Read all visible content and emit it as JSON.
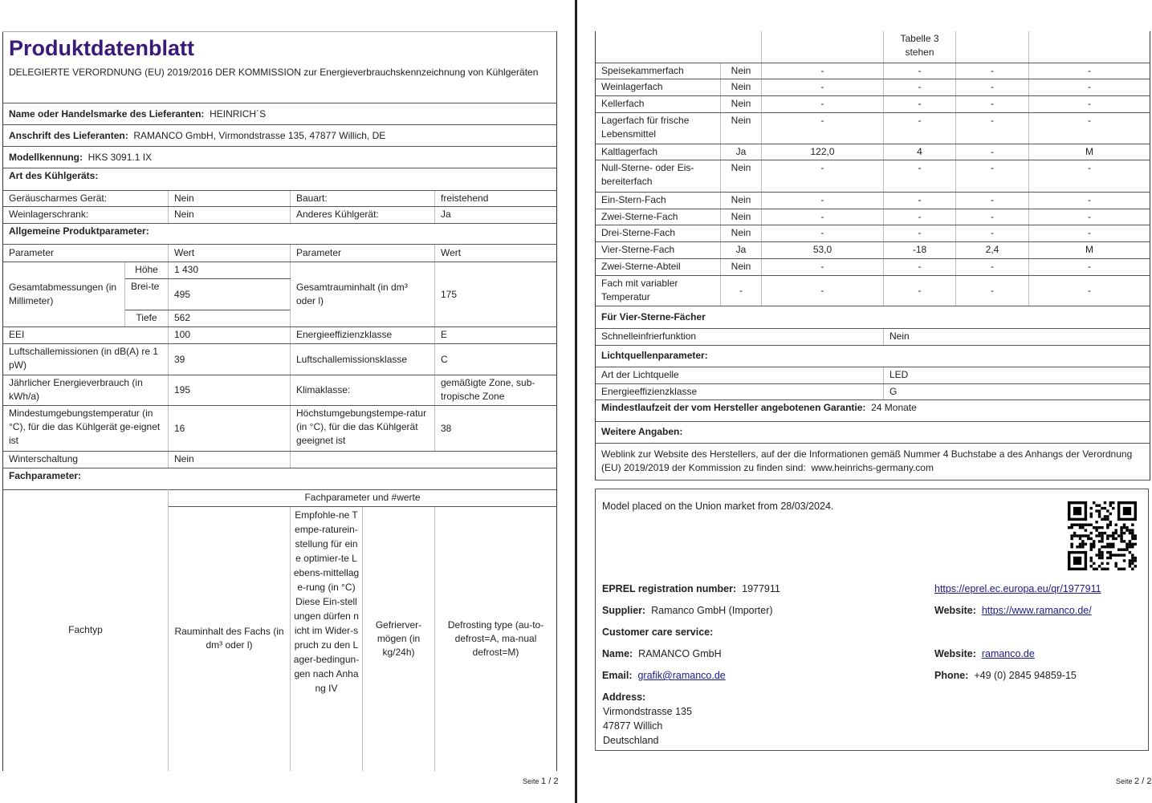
{
  "page1": {
    "title": "Produktdatenblatt",
    "regulation": "DELEGIERTE VERORDNUNG (EU) 2019/2016 DER KOMMISSION zur Energieverbrauchskennzeichnung von Kühlgeräten",
    "supplier_name_label": "Name oder Handelsmarke des Lieferanten:",
    "supplier_name": "HEINRICH´S",
    "supplier_address_label": "Anschrift des Lieferanten:",
    "supplier_address": "RAMANCO GmbH, Virmondstrasse 135, 47877 Willich, DE",
    "model_label": "Modellkennung:",
    "model": "HKS 3091.1 IX",
    "type_heading": "Art des Kühlgeräts:",
    "type_rows": [
      {
        "l1": "Geräuscharmes Gerät:",
        "v1": "Nein",
        "l2": "Bauart:",
        "v2": "freistehend"
      },
      {
        "l1": "Weinlagerschrank:",
        "v1": "Nein",
        "l2": "Anderes Kühlgerät:",
        "v2": "Ja"
      }
    ],
    "general_heading": "Allgemeine Produktparameter:",
    "col_parameter": "Parameter",
    "col_value": "Wert",
    "dimensions_label": "Gesamtabmessungen (in Millimeter)",
    "height_label": "Höhe",
    "height": "1 430",
    "width_label": "Brei-te",
    "width": "495",
    "depth_label": "Tiefe",
    "depth": "562",
    "volume_label": "Gesamtrauminhalt (in dm³ oder l)",
    "volume": "175",
    "rows": [
      {
        "l1": "EEI",
        "v1": "100",
        "l2": "Energieeffizienzklasse",
        "v2": "E"
      },
      {
        "l1": "Luftschallemissionen (in dB(A) re 1 pW)",
        "v1": "39",
        "l2": "Luftschallemissionsklasse",
        "v2": "C"
      },
      {
        "l1": "Jährlicher Energieverbrauch (in kWh/a)",
        "v1": "195",
        "l2": "Klimaklasse:",
        "v2": "gemäßigte Zone, sub-tropische Zone"
      },
      {
        "l1": "Mindestumgebungstemperatur (in °C), für die das Kühlgerät ge-eignet ist",
        "v1": "16",
        "l2": "Höchstumgebungstempe-ratur (in °C), für die das Kühlgerät geeignet ist",
        "v2": "38"
      }
    ],
    "winter_label": "Winterschaltung",
    "winter": "Nein",
    "compartment_heading": "Fachparameter:",
    "compartment_group": "Fachparameter und #werte",
    "col_fachtyp": "Fachtyp",
    "col_volume": "Rauminhalt des Fachs (in dm³ oder l)",
    "col_temp": "Empfohle-ne Tempe-raturein-stellung für eine optimier-te Lebens-mittellage-rung (in °C)",
    "col_temp_note": "Diese Ein-stellungen dürfen nicht im Wider-spruch zu den Lager-bedingun-gen nach Anhang IV",
    "col_freeze": "Gefrierver-mögen (in kg/24h)",
    "col_defrost": "Defrosting type (au-to-defrost=A, ma-nual defrost=M)",
    "footer_prefix": "Seite",
    "footer_page": "1 / 2"
  },
  "page2": {
    "header_cont": "Tabelle 3 stehen",
    "compartments": [
      [
        "Speisekammerfach",
        "Nein",
        "-",
        "-",
        "-",
        "-"
      ],
      [
        "Weinlagerfach",
        "Nein",
        "-",
        "-",
        "-",
        "-"
      ],
      [
        "Kellerfach",
        "Nein",
        "-",
        "-",
        "-",
        "-"
      ],
      [
        "Lagerfach für frische Lebensmittel",
        "Nein",
        "-",
        "-",
        "-",
        "-"
      ],
      [
        "Kaltlagerfach",
        "Ja",
        "122,0",
        "4",
        "-",
        "M"
      ],
      [
        "Null-Sterne- oder Eis-bereiterfach",
        "Nein",
        "-",
        "-",
        "-",
        "-"
      ],
      [
        "Ein-Stern-Fach",
        "Nein",
        "-",
        "-",
        "-",
        "-"
      ],
      [
        "Zwei-Sterne-Fach",
        "Nein",
        "-",
        "-",
        "-",
        "-"
      ],
      [
        "Drei-Sterne-Fach",
        "Nein",
        "-",
        "-",
        "-",
        "-"
      ],
      [
        "Vier-Sterne-Fach",
        "Ja",
        "53,0",
        "-18",
        "2,4",
        "M"
      ],
      [
        "Zwei-Sterne-Abteil",
        "Nein",
        "-",
        "-",
        "-",
        "-"
      ],
      [
        "Fach mit variabler Temperatur",
        "-",
        "-",
        "-",
        "-",
        "-"
      ]
    ],
    "four_star_heading": "Für Vier-Sterne-Fächer",
    "fast_freeze_label": "Schnelleinfrierfunktion",
    "fast_freeze": "Nein",
    "light_heading": "Lichtquellenparameter:",
    "light_type_label": "Art der Lichtquelle",
    "light_type": "LED",
    "light_class_label": "Energieeffizienzklasse",
    "light_class": "G",
    "warranty_label": "Mindestlaufzeit der vom Hersteller angebotenen Garantie:",
    "warranty": "24 Monate",
    "further_heading": "Weitere Angaben:",
    "weblink_text": "Weblink zur Website des Herstellers, auf der die Informationen gemäß Nummer 4 Buchstabe a des Anhangs der Verordnung (EU) 2019/2019 der Kommission zu finden sind:",
    "weblink": "www.heinrichs-germany.com",
    "eprel": {
      "placed": "Model placed on the Union market from 28/03/2024.",
      "reg_label": "EPREL registration number:",
      "reg": "1977911",
      "qr_link": "https://eprel.ec.europa.eu/qr/1977911",
      "supplier_label": "Supplier:",
      "supplier": "Ramanco GmbH (Importer)",
      "website_label": "Website:",
      "website": "https://www.ramanco.de/",
      "care_heading": "Customer care service:",
      "name_label": "Name:",
      "name": "RAMANCO GmbH",
      "care_website_label": "Website:",
      "care_website": "ramanco.de",
      "email_label": "Email:",
      "email": "grafik@ramanco.de",
      "phone_label": "Phone:",
      "phone": "+49 (0) 2845 94859-15",
      "address_label": "Address:",
      "address": [
        "Virmondstrasse 135",
        "47877 Willich",
        "Deutschland"
      ]
    },
    "footer_prefix": "Seite",
    "footer_page": "2 / 2"
  }
}
